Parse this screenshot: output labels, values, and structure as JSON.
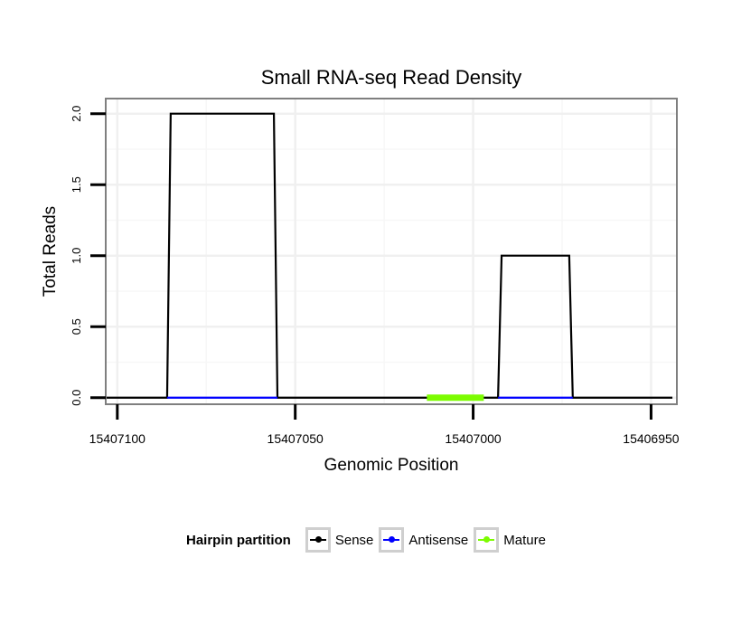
{
  "chart_data": {
    "type": "line",
    "title": "Small RNA-seq Read Density",
    "xlabel": "Genomic Position",
    "ylabel": "Total Reads",
    "x_reversed": true,
    "xlim": [
      15407103,
      15406943
    ],
    "ylim": [
      -0.04,
      2.1
    ],
    "x_ticks": [
      15407100,
      15407050,
      15407000,
      15406950
    ],
    "x_tick_labels": [
      "15407100",
      "15407050",
      "15407000",
      "15406950"
    ],
    "y_ticks": [
      0.0,
      0.5,
      1.0,
      1.5,
      2.0
    ],
    "y_tick_labels": [
      "0.0",
      "0.5",
      "1.0",
      "1.5",
      "2.0"
    ],
    "grid": true,
    "legend_position": "bottom",
    "series": [
      {
        "name": "Sense",
        "color": "#000000",
        "x": [
          15407103,
          15407086,
          15407085,
          15407056,
          15407055,
          15406993,
          15406992,
          15406973,
          15406972,
          15406944
        ],
        "y": [
          0,
          0,
          2,
          2,
          0,
          0,
          1,
          1,
          0,
          0
        ]
      },
      {
        "name": "Antisense",
        "color": "#0000ff",
        "segments": [
          [
            15407086,
            15407055
          ],
          [
            15406993,
            15406972
          ]
        ],
        "y": 0
      },
      {
        "name": "Mature",
        "color": "#7cfc00",
        "segments": [
          [
            15407013,
            15406997
          ]
        ],
        "y": 0
      }
    ]
  },
  "legend": {
    "title": "Hairpin partition",
    "items": [
      {
        "label": "Sense",
        "color": "#000000"
      },
      {
        "label": "Antisense",
        "color": "#0000ff"
      },
      {
        "label": "Mature",
        "color": "#7cfc00"
      }
    ]
  }
}
